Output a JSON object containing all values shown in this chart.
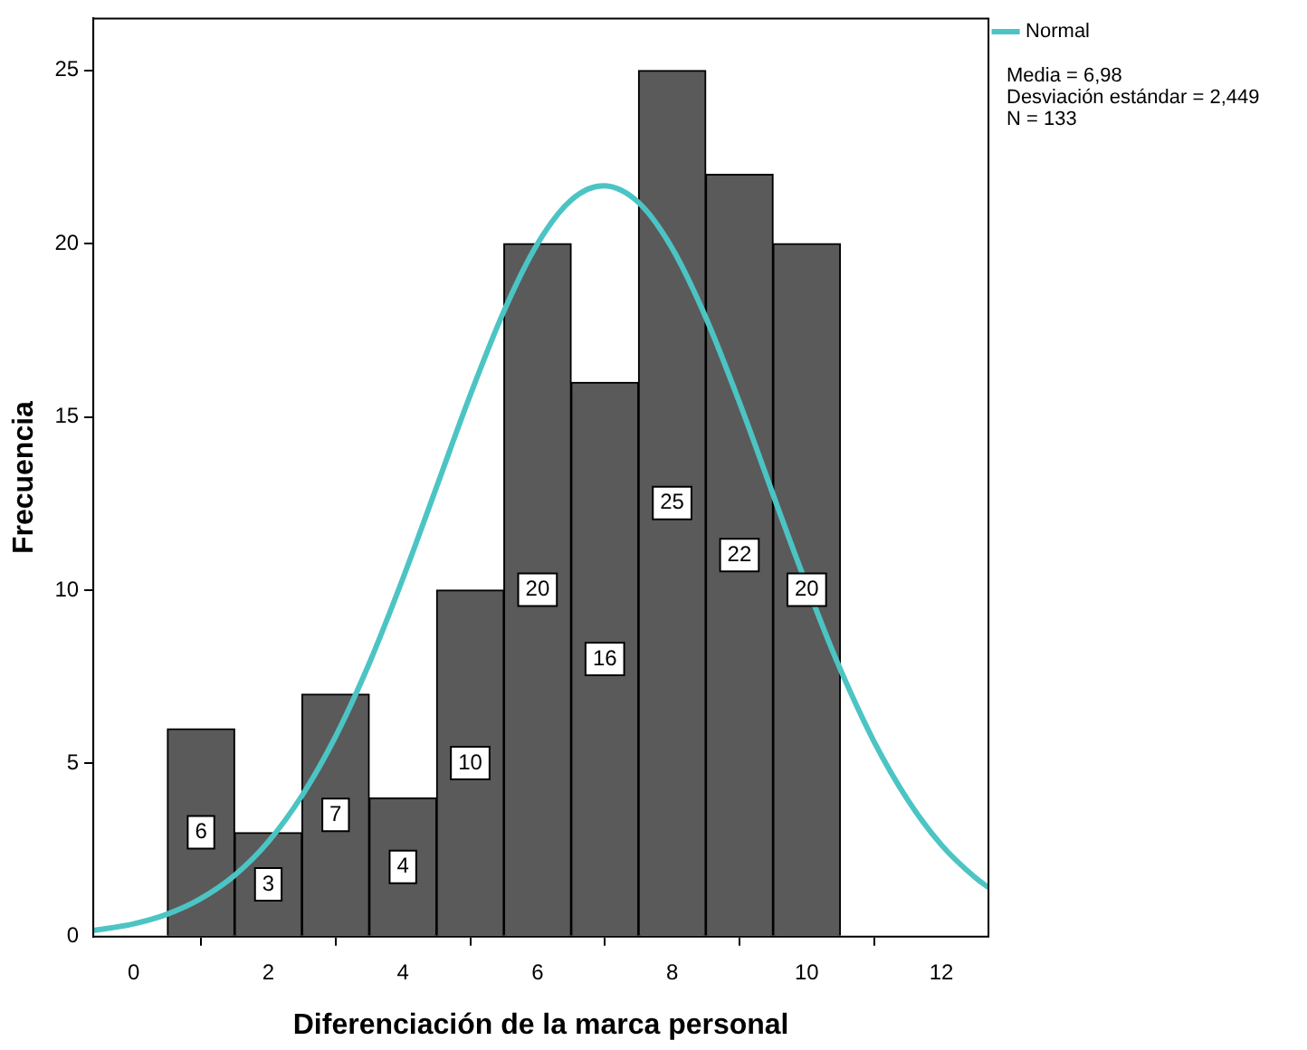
{
  "chart_data": {
    "type": "histogram",
    "xlabel": "Diferenciación de la marca personal",
    "ylabel": "Frecuencia",
    "bins": [
      0.5,
      1.5,
      2.5,
      3.5,
      4.5,
      5.5,
      6.5,
      7.5,
      8.5,
      9.5,
      10.5
    ],
    "values": [
      6,
      3,
      7,
      4,
      10,
      20,
      16,
      25,
      22,
      20
    ],
    "color": "#5a5a5a",
    "value_labels": [
      "6",
      "3",
      "7",
      "4",
      "10",
      "20",
      "16",
      "25",
      "22",
      "20"
    ],
    "series": [
      {
        "name": "Normal",
        "type": "line",
        "color": "#4cc4c4",
        "x": [
          -0.6,
          0,
          0.5,
          1,
          1.5,
          2,
          2.5,
          3,
          3.5,
          4,
          4.5,
          5,
          5.5,
          6,
          6.5,
          6.98,
          7.5,
          8,
          8.5,
          9,
          9.5,
          9.75,
          10.25,
          10.5,
          11,
          11.5,
          12,
          12.5,
          12.7
        ],
        "values": [
          0.18,
          0.37,
          0.65,
          1.1,
          1.77,
          2.74,
          4.07,
          5.78,
          7.89,
          10.34,
          12.98,
          15.63,
          18.05,
          20,
          21.26,
          21.67,
          21.19,
          19.87,
          17.87,
          15.42,
          12.76,
          11.43,
          8.89,
          7.71,
          5.63,
          3.95,
          2.65,
          1.71,
          1.42
        ]
      }
    ],
    "xlim": [
      -0.6,
      12.7
    ],
    "xticks": [
      0,
      2,
      4,
      6,
      8,
      10,
      12
    ],
    "ylim": [
      0,
      26.5
    ],
    "yticks": [
      0,
      5,
      10,
      15,
      20,
      25
    ],
    "legend": "top right",
    "marker": "none",
    "annotations": [
      "Media = 6,98",
      "Desviación estándar = 2,449",
      "N = 133"
    ]
  }
}
